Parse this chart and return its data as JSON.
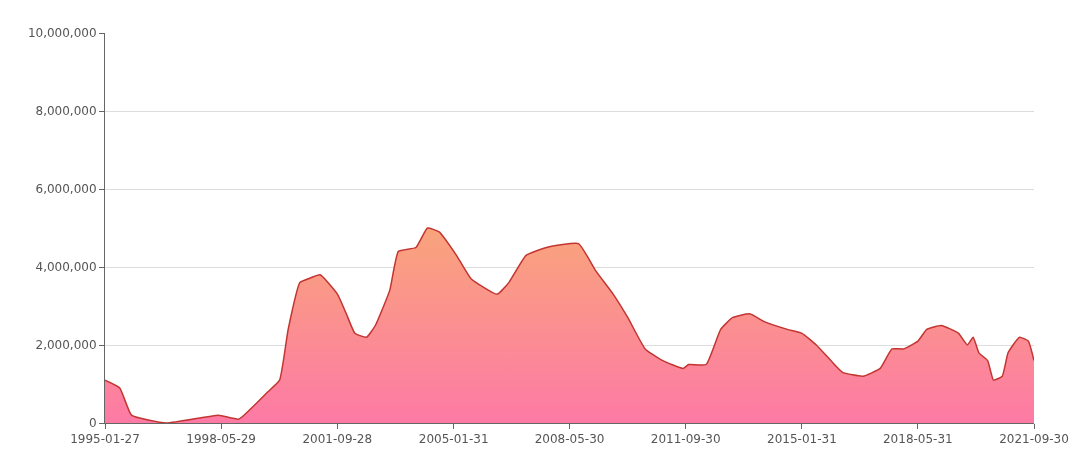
{
  "chart_data": {
    "type": "area",
    "x": [
      "1995-01-27",
      "1995-07",
      "1995-11",
      "1996-11",
      "1998-05",
      "1998-12",
      "1999-06",
      "1999-10",
      "2000-02",
      "2000-05",
      "2000-09",
      "2000-12",
      "2001-04",
      "2001-10",
      "2002-01",
      "2002-04",
      "2002-08",
      "2002-11",
      "2003-04",
      "2003-07",
      "2004-01",
      "2004-05",
      "2004-09",
      "2005-03",
      "2005-08",
      "2006-05",
      "2006-09",
      "2007-03",
      "2007-10",
      "2008-09",
      "2009-03",
      "2009-09",
      "2010-02",
      "2010-08",
      "2011-02",
      "2011-09",
      "2011-11",
      "2012-05",
      "2012-10",
      "2013-02",
      "2013-08",
      "2014-01",
      "2014-09",
      "2015-02",
      "2015-07",
      "2015-12",
      "2016-04",
      "2016-11",
      "2017-05",
      "2017-09",
      "2018-01",
      "2018-06",
      "2018-09",
      "2019-02",
      "2019-08",
      "2019-11",
      "2020-01",
      "2020-03",
      "2020-06",
      "2020-08",
      "2020-11",
      "2021-01",
      "2021-05",
      "2021-08",
      "2021-09-30"
    ],
    "series": [
      {
        "color": "#c23531",
        "values": [
          1100000,
          900000,
          200000,
          0,
          200000,
          100000,
          500000,
          800000,
          1100000,
          2400000,
          3600000,
          3700000,
          3800000,
          3300000,
          2800000,
          2300000,
          2200000,
          2500000,
          3400000,
          4400000,
          4500000,
          5000000,
          4900000,
          4300000,
          3700000,
          3300000,
          3600000,
          4300000,
          4500000,
          4600000,
          3900000,
          3300000,
          2700000,
          1900000,
          1600000,
          1400000,
          1500000,
          1500000,
          2400000,
          2700000,
          2800000,
          2600000,
          2400000,
          2300000,
          2000000,
          1600000,
          1300000,
          1200000,
          1400000,
          1900000,
          1900000,
          2100000,
          2400000,
          2500000,
          2300000,
          2000000,
          2200000,
          1800000,
          1600000,
          1100000,
          1200000,
          1800000,
          2200000,
          2100000,
          1600000
        ]
      }
    ],
    "xlim": [
      "1995-01-27",
      "2021-09-30"
    ],
    "xticks": [
      {
        "value": "1995-01-27",
        "label": "1995-01-27"
      },
      {
        "value": "1998-05-29",
        "label": "1998-05-29"
      },
      {
        "value": "2001-09-28",
        "label": "2001-09-28"
      },
      {
        "value": "2005-01-31",
        "label": "2005-01-31"
      },
      {
        "value": "2008-05-30",
        "label": "2008-05-30"
      },
      {
        "value": "2011-09-30",
        "label": "2011-09-30"
      },
      {
        "value": "2015-01-31",
        "label": "2015-01-31"
      },
      {
        "value": "2018-05-31",
        "label": "2018-05-31"
      },
      {
        "value": "2021-09-30",
        "label": "2021-09-30"
      }
    ],
    "ylim": [
      0,
      10000000
    ],
    "yticks": [
      {
        "value": 0,
        "label": "0"
      },
      {
        "value": 2000000,
        "label": "2,000,000"
      },
      {
        "value": 4000000,
        "label": "4,000,000"
      },
      {
        "value": 6000000,
        "label": "6,000,000"
      },
      {
        "value": 8000000,
        "label": "8,000,000"
      },
      {
        "value": 10000000,
        "label": "10,000,000"
      }
    ],
    "grid": "y"
  }
}
